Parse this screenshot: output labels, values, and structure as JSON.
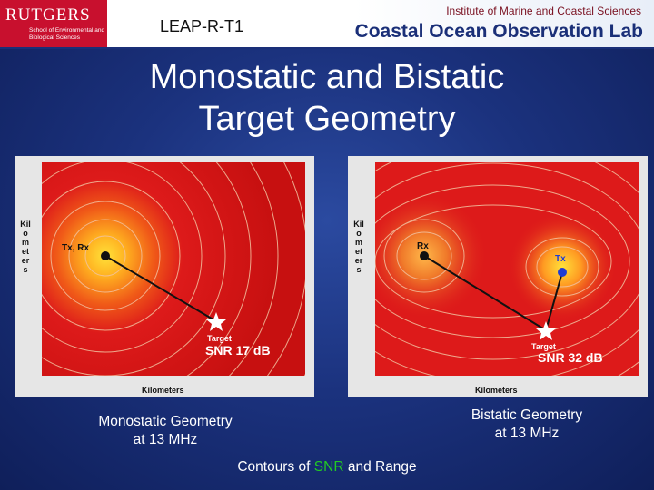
{
  "header": {
    "logo": {
      "name": "RUTGERS",
      "subtitle": "School of Environmental and Biological Sciences",
      "brand_color": "#c8102e"
    },
    "doc_code": "LEAP-R-T1",
    "institute": "Institute of Marine and Coastal Sciences",
    "lab": "Coastal Ocean Observation Lab"
  },
  "title": {
    "line1": "Monostatic and Bistatic",
    "line2": "Target Geometry"
  },
  "plots": {
    "mono": {
      "ylabel": "Kilometers",
      "xlabel": "Kilometers",
      "transmitter_label": "Tx, Rx",
      "target_label": "Target",
      "snr": "SNR 17 dB"
    },
    "bi": {
      "ylabel": "Kilometers",
      "xlabel": "Kilometers",
      "receiver_label": "Rx",
      "transmitter_label": "Tx",
      "target_label": "Target",
      "snr": "SNR 32 dB"
    },
    "colors": {
      "field": "#dd1a1a",
      "hot": "#ffd21f",
      "contour": "#f2c2a0",
      "rx_marker": "#111111",
      "tx_marker": "#1f3bd6"
    }
  },
  "captions": {
    "mono_line1": "Monostatic Geometry",
    "mono_line2": "at 13 MHz",
    "bi_line1": "Bistatic Geometry",
    "bi_line2": "at 13 MHz",
    "contours_prefix": "Contours of",
    "contours_snr": "SNR",
    "contours_suffix": "and Range"
  }
}
